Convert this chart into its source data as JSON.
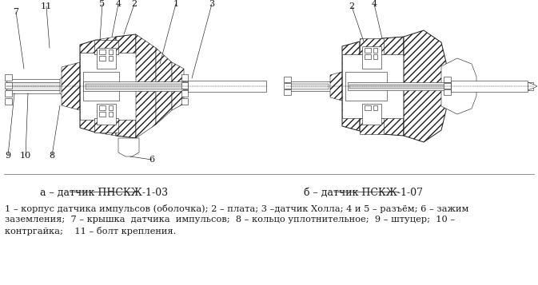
{
  "title_a": "а – датчик ПНСКЖ-1-03",
  "title_b": "б – датчик ПСКЖ-1-07",
  "legend_line1": "1 – корпус датчика импульсов (оболочка); 2 – плата; 3 –датчик Холла; 4 и 5 – разъём; 6 – зажим",
  "legend_line2": "заземления;  7 – крышка  датчика  импульсов;  8 – кольцо уплотнительное;  9 – штуцер;  10 –",
  "legend_line3": "контргайка;    11 – болт крепления.",
  "bg_color": "#ffffff",
  "line_color": "#1a1a1a",
  "title_fontsize": 9,
  "legend_fontsize": 8.2,
  "label_fontsize": 8
}
